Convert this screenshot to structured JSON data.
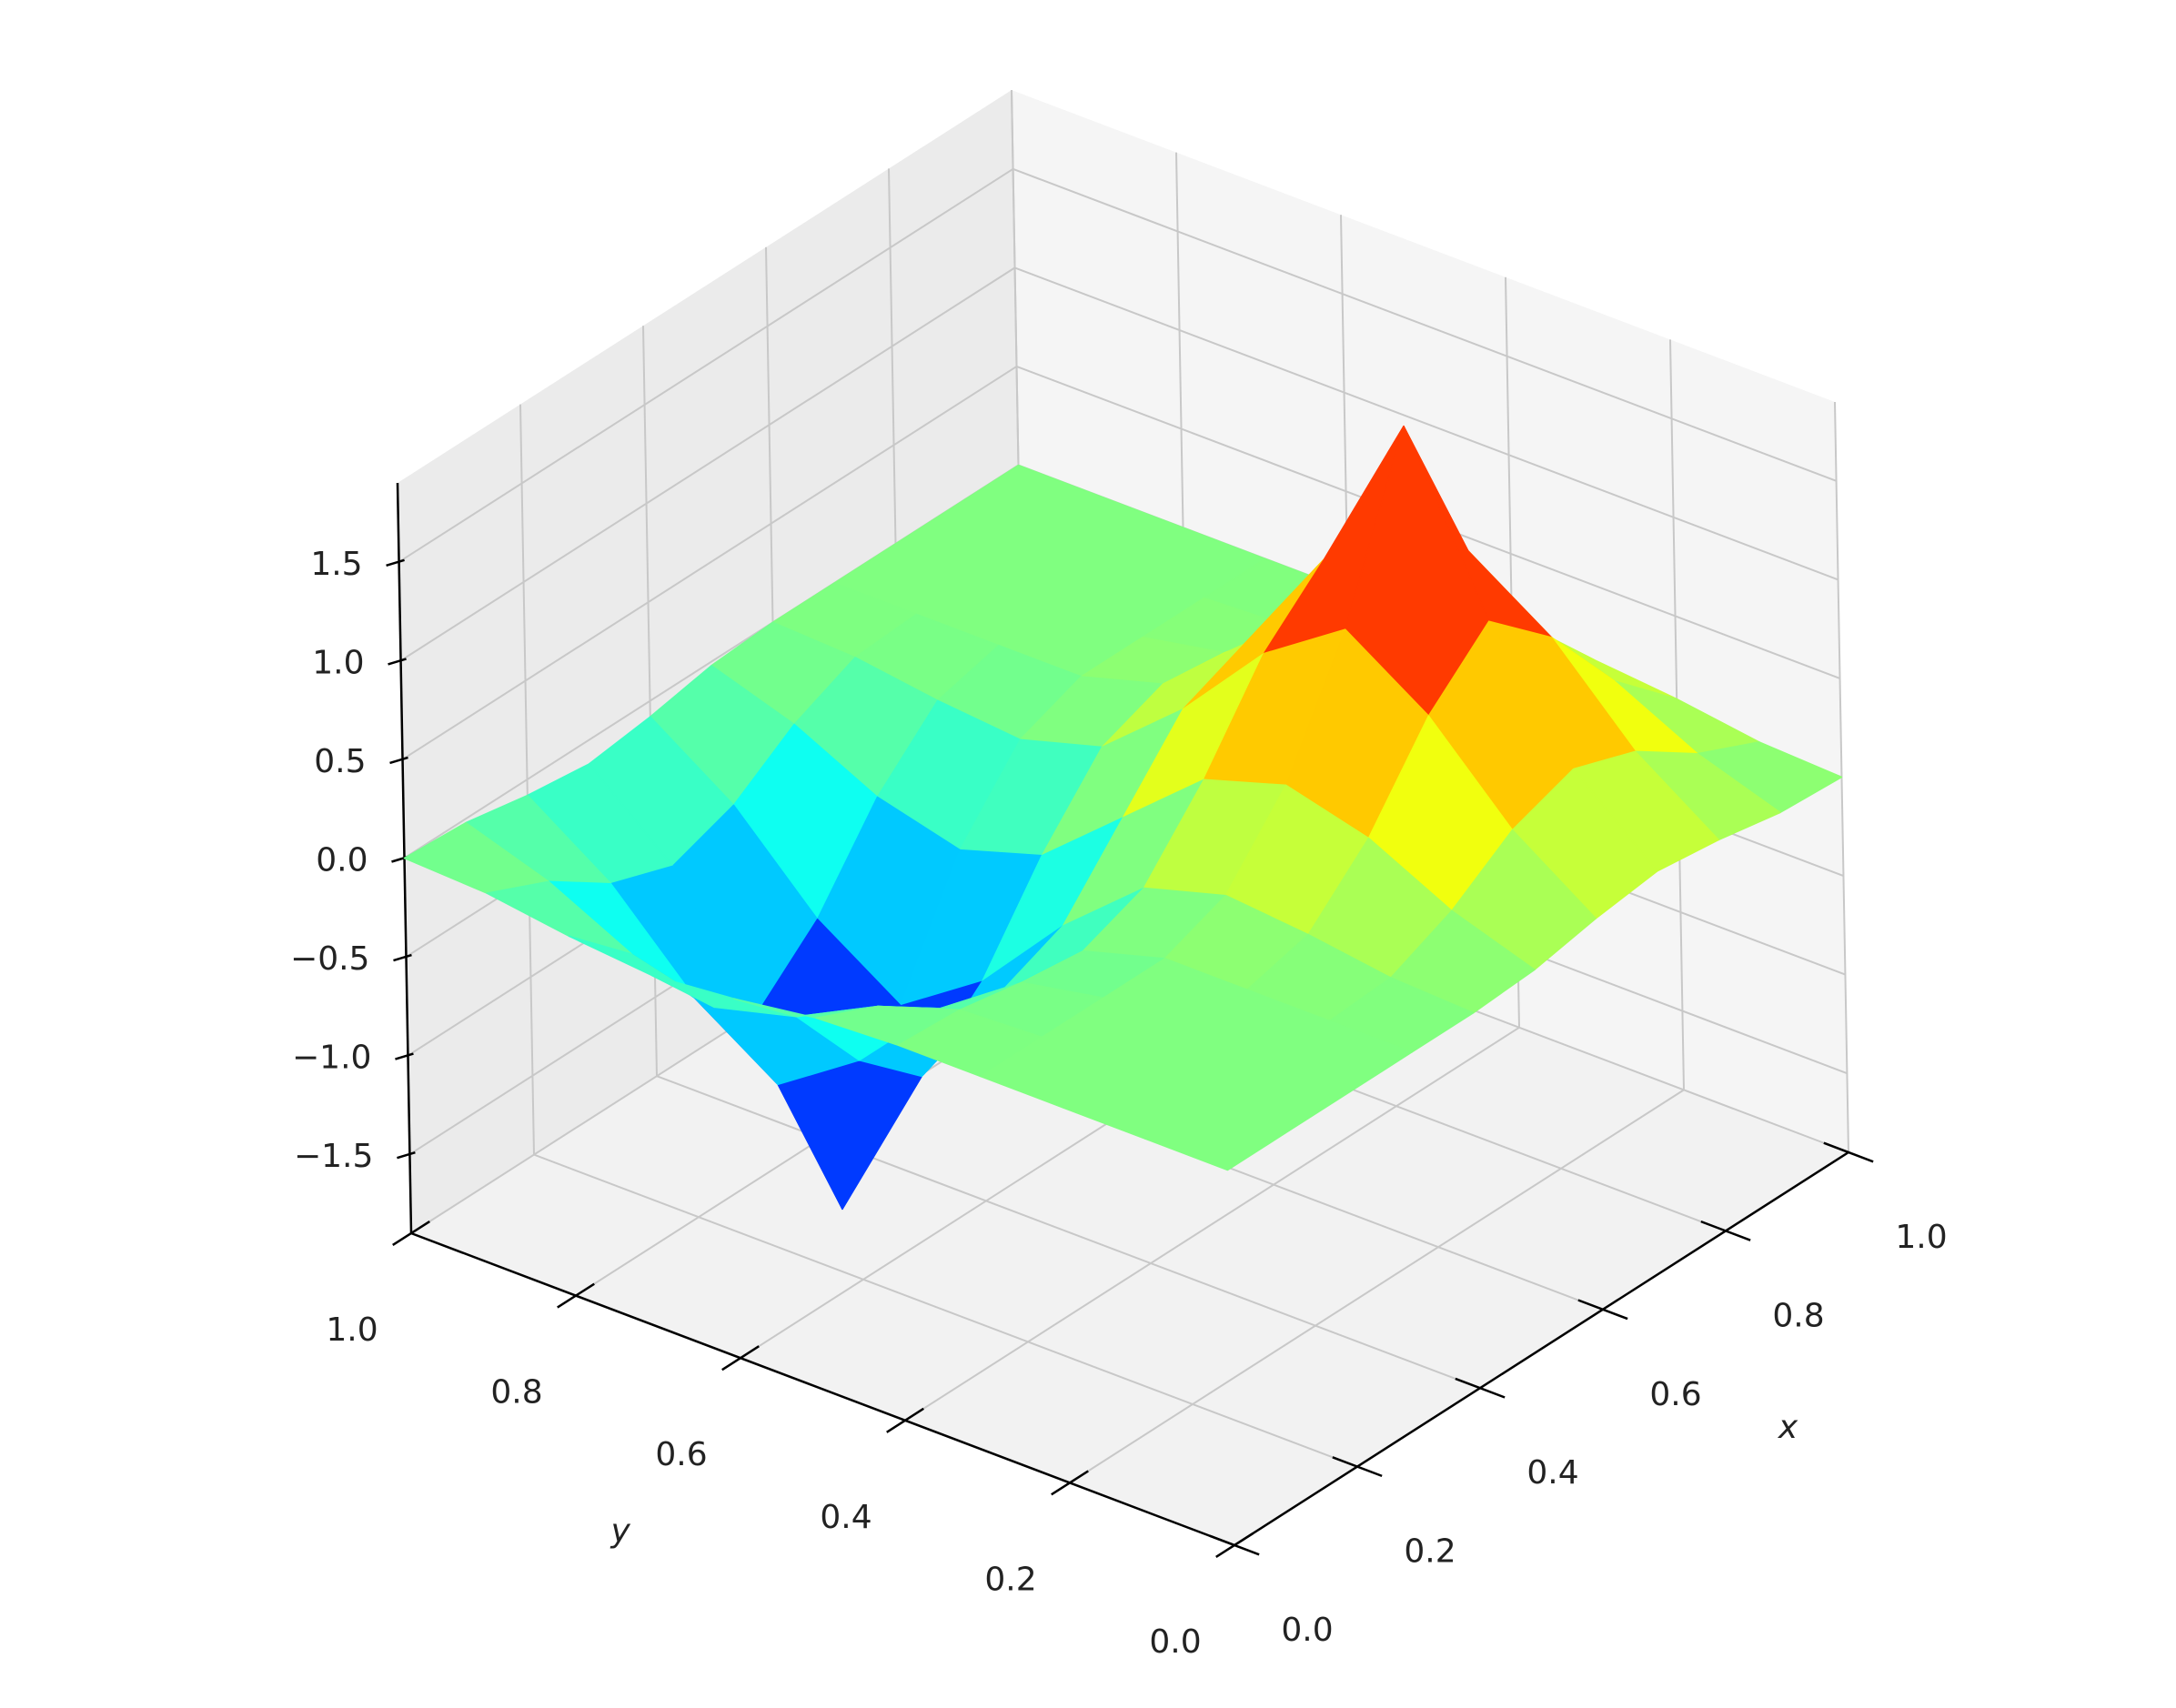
{
  "chart_data": {
    "type": "surface",
    "xlabel": "x",
    "ylabel": "y",
    "colormap": "jet",
    "grid": true,
    "x": [
      0,
      0.1,
      0.2,
      0.3,
      0.4,
      0.5,
      0.6,
      0.7,
      0.8,
      0.9,
      1
    ],
    "y": [
      0,
      0.1,
      0.2,
      0.3,
      0.4,
      0.5,
      0.6,
      0.7,
      0.8,
      0.9,
      1
    ],
    "z": [
      [
        0,
        0,
        0,
        0,
        0,
        0.02,
        0.08,
        0.12,
        0.08,
        0.02,
        0
      ],
      [
        0,
        0,
        0,
        0,
        0.02,
        0.16,
        0.37,
        0.48,
        0.37,
        0.16,
        0.02
      ],
      [
        0,
        0,
        0,
        0,
        0.08,
        0.37,
        0.79,
        1.07,
        0.79,
        0.37,
        0.08
      ],
      [
        0,
        0,
        0,
        0,
        0.12,
        0.48,
        1.07,
        1.9,
        1.07,
        0.48,
        0.12
      ],
      [
        0,
        -0.02,
        -0.08,
        -0.12,
        0,
        0.35,
        0.79,
        1.07,
        0.79,
        0.37,
        0.08
      ],
      [
        -0.02,
        -0.16,
        -0.37,
        -0.48,
        -0.35,
        0,
        0.35,
        0.48,
        0.37,
        0.16,
        0.02
      ],
      [
        -0.08,
        -0.37,
        -0.79,
        -1.07,
        -0.79,
        -0.35,
        0,
        0.12,
        0.08,
        0.02,
        0
      ],
      [
        -0.12,
        -0.48,
        -1.07,
        -1.9,
        -1.07,
        -0.48,
        -0.12,
        0,
        0,
        0,
        0
      ],
      [
        -0.08,
        -0.37,
        -0.79,
        -1.07,
        -0.79,
        -0.37,
        -0.08,
        0,
        0,
        0,
        0
      ],
      [
        -0.02,
        -0.16,
        -0.37,
        -0.48,
        -0.37,
        -0.16,
        -0.02,
        0,
        0,
        0,
        0
      ],
      [
        0,
        -0.02,
        -0.08,
        -0.12,
        -0.08,
        -0.02,
        0,
        0,
        0,
        0,
        0
      ]
    ],
    "xlim": [
      0,
      1
    ],
    "ylim": [
      0,
      1
    ],
    "zlim": [
      -1.9,
      1.9
    ],
    "xticks": [
      {
        "value": 0,
        "label": "0.0"
      },
      0.2,
      0.4,
      0.6,
      0.8,
      {
        "value": 1,
        "label": "1.0"
      }
    ],
    "yticks": [
      {
        "value": 0,
        "label": "0.0"
      },
      0.2,
      0.4,
      0.6,
      0.8,
      {
        "value": 1,
        "label": "1.0"
      }
    ],
    "zticks": [
      {
        "value": -1.5,
        "label": "−1.5"
      },
      {
        "value": -1,
        "label": "−1.0"
      },
      {
        "value": -0.5,
        "label": "−0.5"
      },
      {
        "value": 0,
        "label": "0.0"
      },
      0.5,
      {
        "value": 1,
        "label": "1.0"
      },
      1.5
    ]
  }
}
